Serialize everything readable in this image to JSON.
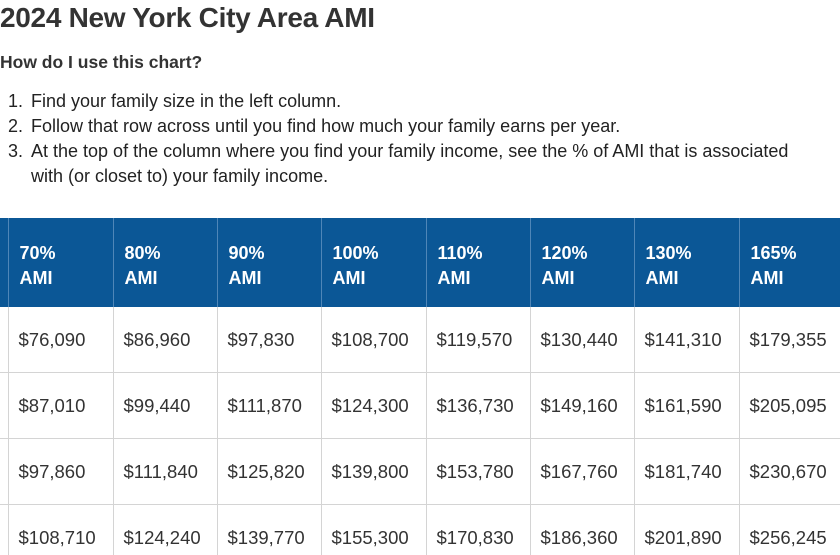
{
  "header": {
    "title": "2024 New York City Area AMI",
    "subtitle": "How do I use this chart?"
  },
  "instructions": [
    {
      "number": "1.",
      "text": "Find your family size in the left column."
    },
    {
      "number": "2.",
      "text": "Follow that row across until you find how much your family earns per year."
    },
    {
      "number": "3.",
      "text": "At the top of the column where you find your family income, see the % of AMI that is associated with (or closet to) your family income."
    }
  ],
  "table": {
    "headers": [
      {
        "percent": "70%",
        "label": "AMI"
      },
      {
        "percent": "80%",
        "label": "AMI"
      },
      {
        "percent": "90%",
        "label": "AMI"
      },
      {
        "percent": "100%",
        "label": "AMI"
      },
      {
        "percent": "110%",
        "label": "AMI"
      },
      {
        "percent": "120%",
        "label": "AMI"
      },
      {
        "percent": "130%",
        "label": "AMI"
      },
      {
        "percent": "165%",
        "label": "AMI"
      }
    ],
    "rows": [
      [
        "$76,090",
        "$86,960",
        "$97,830",
        "$108,700",
        "$119,570",
        "$130,440",
        "$141,310",
        "$179,355"
      ],
      [
        "$87,010",
        "$99,440",
        "$111,870",
        "$124,300",
        "$136,730",
        "$149,160",
        "$161,590",
        "$205,095"
      ],
      [
        "$97,860",
        "$111,840",
        "$125,820",
        "$139,800",
        "$153,780",
        "$167,760",
        "$181,740",
        "$230,670"
      ],
      [
        "$108,710",
        "$124,240",
        "$139,770",
        "$155,300",
        "$170,830",
        "$186,360",
        "$201,890",
        "$256,245"
      ]
    ]
  }
}
